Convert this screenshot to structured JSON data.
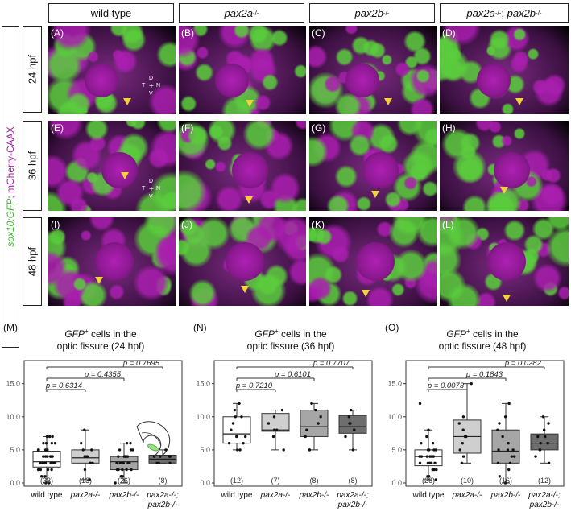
{
  "headers": [
    {
      "text": "wild type"
    },
    {
      "gene": "pax2a",
      "sup": "-/-"
    },
    {
      "gene": "pax2b",
      "sup": "-/-"
    },
    {
      "gene": "pax2a",
      "sup": "-/-",
      "sep": "; ",
      "gene2": "pax2b",
      "sup2": "-/-"
    }
  ],
  "side_label": {
    "green": "sox10:GFP",
    "sep": ";",
    "magenta": " mCherry-CAAX"
  },
  "timepoints": [
    "24 hpf",
    "36 hpf",
    "48 hpf"
  ],
  "panel_letters": [
    "(A)",
    "(B)",
    "(C)",
    "(D)",
    "(E)",
    "(F)",
    "(G)",
    "(H)",
    "(I)",
    "(J)",
    "(K)",
    "(L)"
  ],
  "compass": {
    "d": "D",
    "v": "V",
    "t": "T",
    "n": "N"
  },
  "colors": {
    "gfp": "#4fd13a",
    "mcherry": "#a21fa8",
    "arrow": "#f3d23a"
  },
  "plots": [
    {
      "letter": "(M)",
      "title_sup": "+",
      "title_gene": "GFP",
      "title_line1_rest": " cells in the",
      "title_line2": "optic fissure (24 hpf)",
      "yticks": [
        "15.0",
        "10.0",
        "5.0",
        "0.0"
      ],
      "ylim": [
        0,
        18
      ],
      "categories": [
        "wild type",
        "pax2a-/-",
        "pax2b-/-",
        "pax2a-/-; pax2b-/-"
      ],
      "ns": [
        "(33)",
        "(13)",
        "(26)",
        "(8)"
      ],
      "fills": [
        "#ffffff",
        "#cfcfcf",
        "#a6a6a6",
        "#6e6e6e"
      ],
      "boxes": [
        {
          "q1": 2.4,
          "med": 3.2,
          "q3": 4.8,
          "lo": 0,
          "hi": 7
        },
        {
          "q1": 3,
          "med": 3.8,
          "q3": 5,
          "lo": 0.5,
          "hi": 8
        },
        {
          "q1": 2,
          "med": 3.2,
          "q3": 4,
          "lo": 0,
          "hi": 6
        },
        {
          "q1": 3,
          "med": 3.6,
          "q3": 4.2,
          "lo": 3,
          "hi": 5
        }
      ],
      "points": [
        [
          0,
          0,
          1,
          1,
          2,
          2,
          2,
          2,
          3,
          3,
          3,
          3,
          3,
          3,
          3,
          4,
          4,
          4,
          4,
          4,
          4,
          5,
          5,
          5,
          5,
          5,
          6,
          6,
          6,
          6,
          7,
          7,
          7
        ],
        [
          0.5,
          2,
          3,
          3,
          3,
          4,
          4,
          4,
          4,
          5,
          5,
          6,
          8
        ],
        [
          0,
          1,
          1,
          1,
          2,
          2,
          2,
          2,
          2,
          3,
          3,
          3,
          3,
          3,
          3,
          3,
          4,
          4,
          4,
          4,
          4,
          5,
          5,
          5,
          6,
          6
        ],
        [
          3,
          3,
          3,
          4,
          4,
          4,
          4,
          5
        ]
      ],
      "pvals": [
        {
          "text": "p = 0.6314",
          "from": 0,
          "to": 1
        },
        {
          "text": "p = 0.4355",
          "from": 0,
          "to": 2
        },
        {
          "text": "p = 0.7695",
          "from": 0,
          "to": 3
        }
      ]
    },
    {
      "letter": "(N)",
      "title_sup": "+",
      "title_gene": "GFP",
      "title_line1_rest": " cells in the",
      "title_line2": "optic fissure (36 hpf)",
      "yticks": [
        "15.0",
        "10.0",
        "5.0",
        "0.0"
      ],
      "ylim": [
        0,
        18
      ],
      "categories": [
        "wild type",
        "pax2a-/-",
        "pax2b-/-",
        "pax2a-/-; pax2b-/-"
      ],
      "ns": [
        "(12)",
        "(7)",
        "(8)",
        "(8)"
      ],
      "fills": [
        "#ffffff",
        "#cfcfcf",
        "#a6a6a6",
        "#6e6e6e"
      ],
      "boxes": [
        {
          "q1": 6,
          "med": 7.4,
          "q3": 10,
          "lo": 5,
          "hi": 12
        },
        {
          "q1": 7.8,
          "med": 8,
          "q3": 10.5,
          "lo": 5,
          "hi": 11
        },
        {
          "q1": 7,
          "med": 8.5,
          "q3": 11,
          "lo": 5,
          "hi": 12
        },
        {
          "q1": 7.5,
          "med": 8.5,
          "q3": 10.2,
          "lo": 5,
          "hi": 11
        }
      ],
      "points": [
        [
          5,
          5,
          6,
          6,
          7,
          7,
          8,
          9,
          10,
          10,
          11,
          12
        ],
        [
          5,
          7,
          8,
          8,
          9,
          10,
          11
        ],
        [
          5,
          5,
          7,
          8,
          9,
          10,
          11,
          12
        ],
        [
          5,
          7,
          8,
          8,
          9,
          9,
          10,
          11
        ]
      ],
      "pvals": [
        {
          "text": "p = 0.7210",
          "from": 0,
          "to": 1
        },
        {
          "text": "p = 0.6101",
          "from": 0,
          "to": 2
        },
        {
          "text": "p = 0.7707",
          "from": 0,
          "to": 3
        }
      ]
    },
    {
      "letter": "(O)",
      "title_sup": "+",
      "title_gene": "GFP",
      "title_line1_rest": " cells in the",
      "title_line2": "optic fissure (48 hpf)",
      "yticks": [
        "15.0",
        "10.0",
        "5.0",
        "0.0"
      ],
      "ylim": [
        0,
        18
      ],
      "categories": [
        "wild type",
        "pax2a-/-",
        "pax2b-/-",
        "pax2a-/-; pax2b-/-"
      ],
      "ns": [
        "(26)",
        "(10)",
        "(16)",
        "(12)"
      ],
      "fills": [
        "#ffffff",
        "#cfcfcf",
        "#a6a6a6",
        "#6e6e6e"
      ],
      "boxes": [
        {
          "q1": 2.6,
          "med": 4,
          "q3": 5,
          "lo": 0.5,
          "hi": 8
        },
        {
          "q1": 4.5,
          "med": 7,
          "q3": 9.5,
          "lo": 3,
          "hi": 15
        },
        {
          "q1": 3,
          "med": 4.8,
          "q3": 8,
          "lo": 0,
          "hi": 12
        },
        {
          "q1": 5,
          "med": 6,
          "q3": 7.4,
          "lo": 3,
          "hi": 10
        }
      ],
      "points": [
        [
          0.5,
          1,
          1,
          2,
          2,
          2,
          3,
          3,
          3,
          3,
          3,
          4,
          4,
          4,
          4,
          4,
          4,
          5,
          5,
          5,
          5,
          6,
          6,
          7,
          8,
          12
        ],
        [
          3,
          4,
          5,
          6,
          7,
          7,
          8,
          9,
          10,
          15
        ],
        [
          0,
          1,
          2,
          3,
          3,
          4,
          4,
          5,
          5,
          5,
          6,
          7,
          8,
          9,
          10,
          12
        ],
        [
          3,
          4,
          5,
          5,
          6,
          6,
          6,
          7,
          7,
          8,
          9,
          10
        ]
      ],
      "pvals": [
        {
          "text": "p = 0.0073",
          "from": 0,
          "to": 1
        },
        {
          "text": "p = 0.1843",
          "from": 0,
          "to": 2
        },
        {
          "text": "p = 0.0282",
          "from": 0,
          "to": 3
        }
      ]
    }
  ]
}
